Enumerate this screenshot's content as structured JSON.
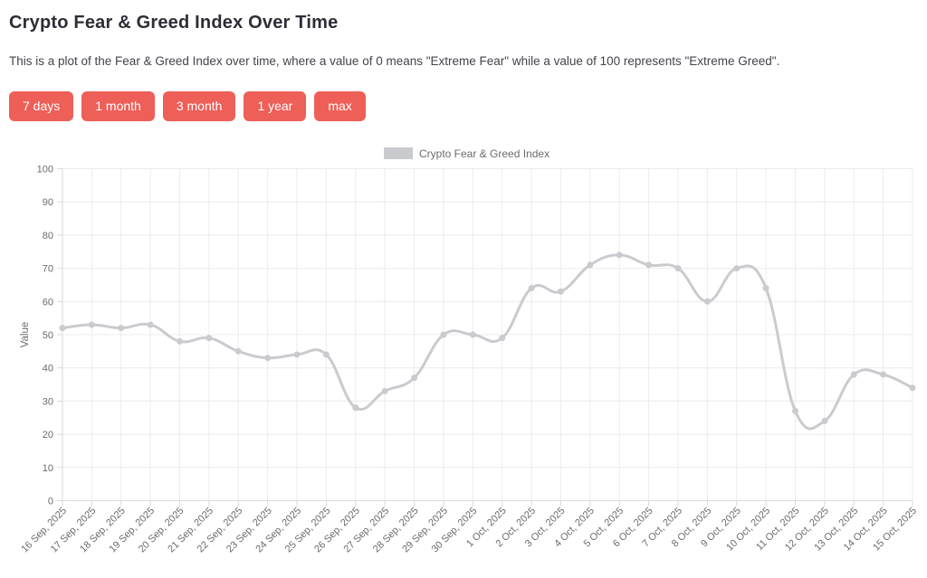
{
  "header": {
    "title": "Crypto Fear & Greed Index Over Time",
    "description": "This is a plot of the Fear & Greed Index over time, where a value of 0 means \"Extreme Fear\" while a value of 100 represents \"Extreme Greed\"."
  },
  "range_buttons": [
    {
      "label": "7 days"
    },
    {
      "label": "1 month"
    },
    {
      "label": "3 month"
    },
    {
      "label": "1 year"
    },
    {
      "label": "max"
    }
  ],
  "colors": {
    "accent_button": "#ee5f58",
    "line": "#c9cbcf",
    "grid": "#ececec",
    "axis_border": "#d9d9d9",
    "tick_text": "#6b6b6b",
    "title_text": "#2d2d35",
    "body_text": "#43434b"
  },
  "chart_data": {
    "type": "line",
    "title": "",
    "legend": "Crypto Fear & Greed Index",
    "legend_position": "top",
    "xlabel": "",
    "ylabel": "Value",
    "ylim": [
      0,
      100
    ],
    "ytick_step": 10,
    "grid": true,
    "x": [
      "16 Sep, 2025",
      "17 Sep, 2025",
      "18 Sep, 2025",
      "19 Sep, 2025",
      "20 Sep, 2025",
      "21 Sep, 2025",
      "22 Sep, 2025",
      "23 Sep, 2025",
      "24 Sep, 2025",
      "25 Sep, 2025",
      "26 Sep, 2025",
      "27 Sep, 2025",
      "28 Sep, 2025",
      "29 Sep, 2025",
      "30 Sep, 2025",
      "1 Oct, 2025",
      "2 Oct, 2025",
      "3 Oct, 2025",
      "4 Oct, 2025",
      "5 Oct, 2025",
      "6 Oct, 2025",
      "7 Oct, 2025",
      "8 Oct, 2025",
      "9 Oct, 2025",
      "10 Oct, 2025",
      "11 Oct, 2025",
      "12 Oct, 2025",
      "13 Oct, 2025",
      "14 Oct, 2025",
      "15 Oct, 2025"
    ],
    "values": [
      52,
      53,
      52,
      53,
      48,
      49,
      45,
      43,
      44,
      44,
      28,
      33,
      37,
      50,
      50,
      49,
      64,
      63,
      71,
      74,
      71,
      70,
      60,
      70,
      64,
      27,
      24,
      38,
      38,
      34
    ]
  }
}
